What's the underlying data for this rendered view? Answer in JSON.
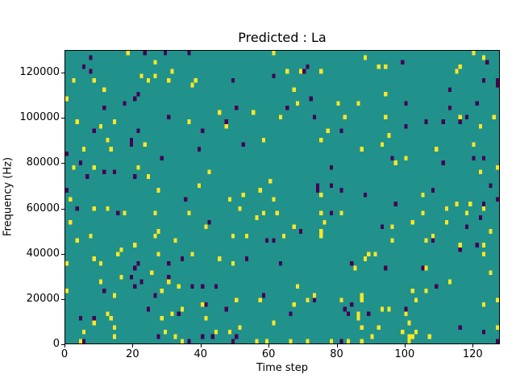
{
  "chart_data": {
    "type": "heatmap",
    "title": "Predicted : La",
    "xlabel": "Time step",
    "ylabel": "Frequency (Hz)",
    "xlim": [
      0,
      128
    ],
    "ylim": [
      0,
      130000
    ],
    "x_ticks": [
      0,
      20,
      40,
      60,
      80,
      100,
      120
    ],
    "y_ticks": [
      0,
      20000,
      40000,
      60000,
      80000,
      100000,
      120000
    ],
    "grid": {
      "cols": 128,
      "rows": 64
    },
    "colors": {
      "figure_background": "#ffffff",
      "background": "#21918c",
      "high": "#fde725",
      "low": "#440154",
      "axis": "#000000"
    },
    "densities": {
      "high": 0.023,
      "low": 0.016
    },
    "bottom_rows_boost": {
      "rows": 2,
      "factor": 3
    },
    "seed": 42,
    "legend": "none",
    "grid_lines": false
  }
}
